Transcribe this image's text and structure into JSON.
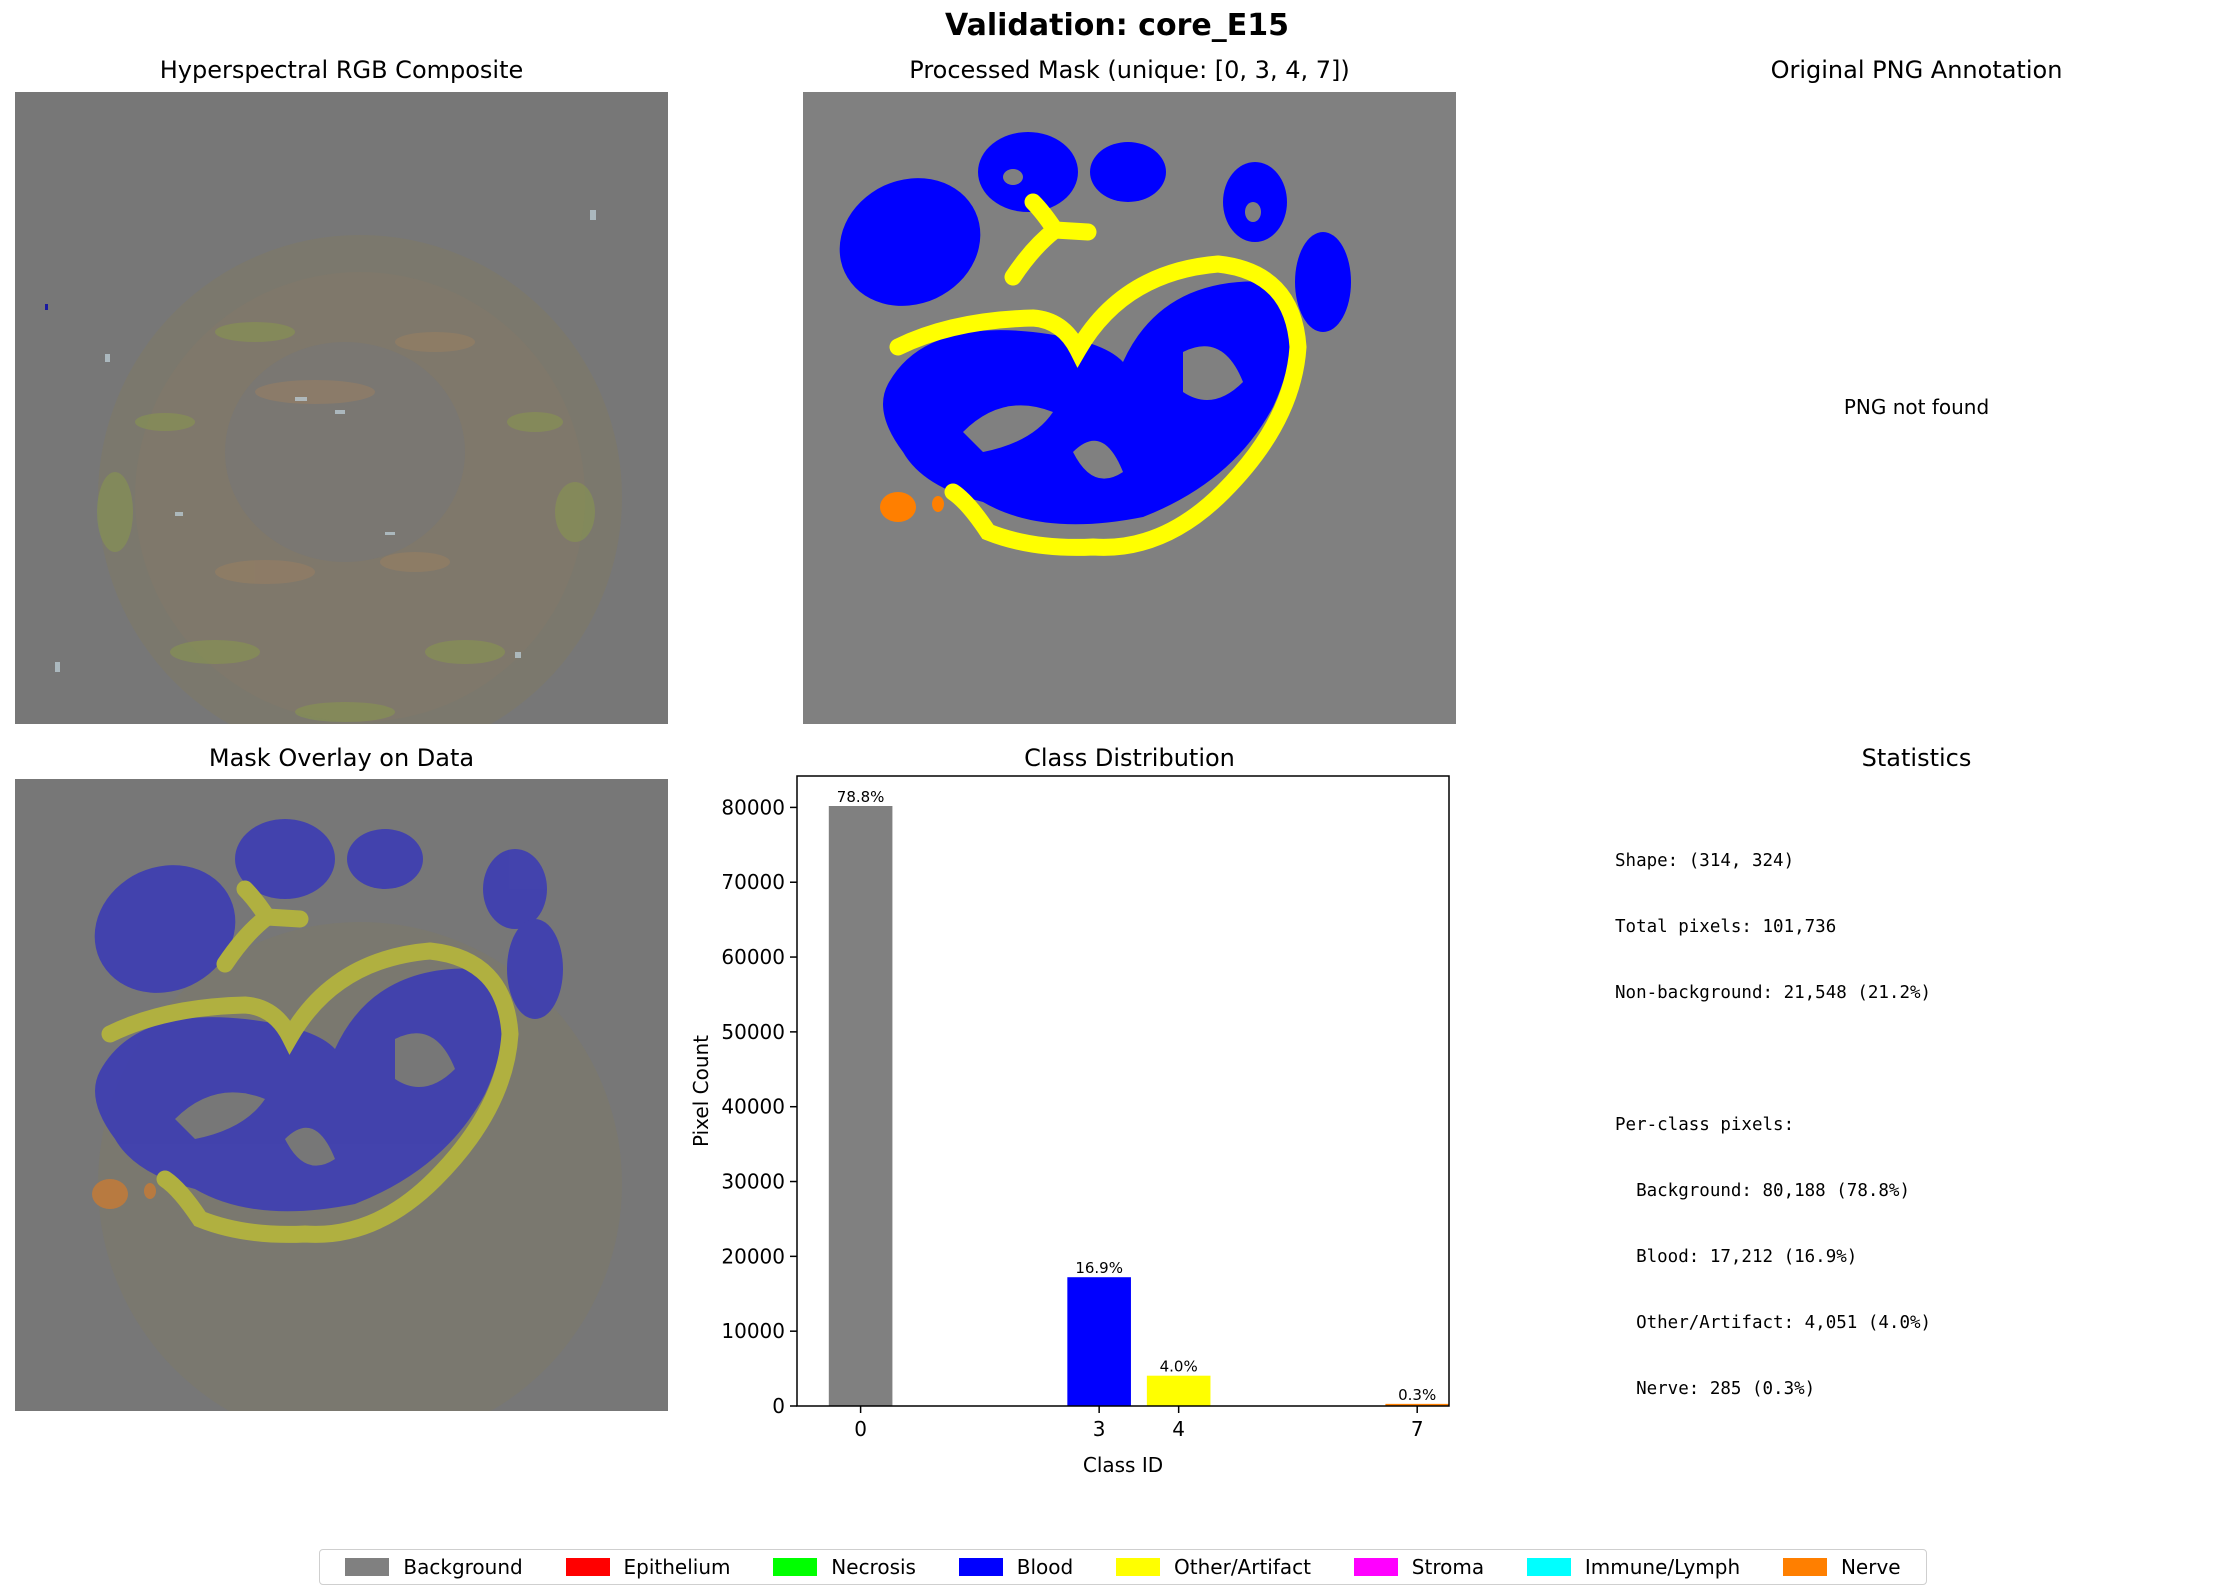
{
  "suptitle": "Validation: core_E15",
  "panels": {
    "rgb_title": "Hyperspectral RGB Composite",
    "mask_title": "Processed Mask (unique: [0, 3, 4, 7])",
    "png_title": "Original PNG Annotation",
    "png_missing": "PNG not found",
    "overlay_title": "Mask Overlay on Data",
    "dist_title": "Class Distribution",
    "stats_title": "Statistics"
  },
  "stats": {
    "lines": [
      "Shape: (314, 324)",
      "Total pixels: 101,736",
      "Non-background: 21,548 (21.2%)",
      "",
      "Per-class pixels:",
      "  Background: 80,188 (78.8%)",
      "  Blood: 17,212 (16.9%)",
      "  Other/Artifact: 4,051 (4.0%)",
      "  Nerve: 285 (0.3%)"
    ]
  },
  "legend": [
    {
      "label": "Background",
      "color": "#808080"
    },
    {
      "label": "Epithelium",
      "color": "#ff0000"
    },
    {
      "label": "Necrosis",
      "color": "#00ff00"
    },
    {
      "label": "Blood",
      "color": "#0000ff"
    },
    {
      "label": "Other/Artifact",
      "color": "#ffff00"
    },
    {
      "label": "Stroma",
      "color": "#ff00ff"
    },
    {
      "label": "Immune/Lymph",
      "color": "#00ffff"
    },
    {
      "label": "Nerve",
      "color": "#ff7f00"
    }
  ],
  "chart_data": {
    "type": "bar",
    "title": "Class Distribution",
    "xlabel": "Class ID",
    "ylabel": "Pixel Count",
    "categories": [
      0,
      3,
      4,
      7
    ],
    "values": [
      80188,
      17212,
      4051,
      285
    ],
    "labels": [
      "78.8%",
      "16.9%",
      "4.0%",
      "0.3%"
    ],
    "colors": [
      "#808080",
      "#0000ff",
      "#ffff00",
      "#ff7f00"
    ],
    "xlim": [
      -0.8,
      7.4
    ],
    "ylim": [
      0,
      84197
    ],
    "yticks": [
      0,
      10000,
      20000,
      30000,
      40000,
      50000,
      60000,
      70000,
      80000
    ],
    "xticks": [
      0,
      3,
      4,
      7
    ],
    "grid": false
  }
}
